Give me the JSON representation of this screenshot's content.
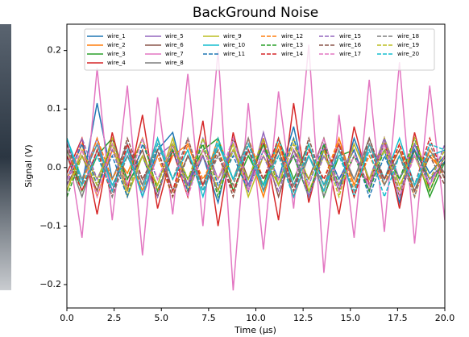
{
  "chart_data": {
    "type": "line",
    "title": "BackGround Noise",
    "xlabel": "Time (μs)",
    "ylabel": "Signal (V)",
    "xlim": [
      0,
      20
    ],
    "ylim": [
      -0.24,
      0.245
    ],
    "xticks": [
      {
        "value": 0,
        "label": "0.0"
      },
      2.5,
      {
        "value": 5,
        "label": "5.0"
      },
      7.5,
      {
        "value": 10,
        "label": "10.0"
      },
      12.5,
      {
        "value": 15,
        "label": "15.0"
      },
      17.5,
      {
        "value": 20,
        "label": "20.0"
      }
    ],
    "yticks": [
      {
        "value": -0.2,
        "label": "−0.2"
      },
      {
        "value": -0.1,
        "label": "−0.1"
      },
      {
        "value": 0,
        "label": "0.0"
      },
      0.1,
      0.2
    ],
    "legend": "upper center",
    "x": [
      0,
      0.8,
      1.6,
      2.4,
      3.2,
      4,
      4.8,
      5.6,
      6.4,
      7.2,
      8,
      8.8,
      9.6,
      10.4,
      11.2,
      12,
      12.8,
      13.6,
      14.4,
      15.2,
      16,
      16.8,
      17.6,
      18.4,
      19.2,
      20
    ],
    "series": [
      {
        "name": "wire_1",
        "color": "#1f77b4",
        "linestyle": "solid",
        "values": [
          0.02,
          -0.03,
          0.11,
          -0.02,
          0.04,
          -0.05,
          0.03,
          0.06,
          -0.04,
          0.02,
          -0.06,
          0.05,
          -0.03,
          0.04,
          -0.02,
          0.07,
          -0.05,
          0.03,
          -0.04,
          0.05,
          -0.02,
          0.03,
          -0.06,
          0.04,
          -0.01,
          0.02
        ]
      },
      {
        "name": "wire_2",
        "color": "#ff7f0e",
        "linestyle": "solid",
        "values": [
          -0.02,
          0.04,
          -0.05,
          0.03,
          -0.01,
          0.05,
          -0.04,
          0.02,
          0.04,
          -0.03,
          0.05,
          -0.02,
          0.03,
          -0.05,
          0.04,
          -0.03,
          0.02,
          -0.04,
          0.05,
          -0.03,
          0.04,
          -0.02,
          0.03,
          -0.04,
          0.02,
          -0.01
        ]
      },
      {
        "name": "wire_3",
        "color": "#2ca02c",
        "linestyle": "solid",
        "values": [
          0.03,
          -0.04,
          0.02,
          0.05,
          -0.03,
          0.02,
          -0.05,
          0.04,
          -0.02,
          0.03,
          0.05,
          -0.04,
          0.02,
          -0.03,
          0.05,
          -0.02,
          0.04,
          -0.05,
          0.02,
          0.03,
          -0.04,
          0.05,
          -0.02,
          0.03,
          -0.05,
          0.01
        ]
      },
      {
        "name": "wire_4",
        "color": "#d62728",
        "linestyle": "solid",
        "values": [
          -0.01,
          0.05,
          -0.08,
          0.06,
          -0.04,
          0.09,
          -0.07,
          0.03,
          -0.05,
          0.08,
          -0.1,
          0.06,
          -0.04,
          0.05,
          -0.09,
          0.11,
          -0.06,
          0.04,
          -0.08,
          0.07,
          -0.03,
          0.05,
          -0.07,
          0.06,
          -0.04,
          0.02
        ]
      },
      {
        "name": "wire_5",
        "color": "#9467bd",
        "linestyle": "solid",
        "values": [
          0.04,
          -0.02,
          0.05,
          -0.04,
          0.03,
          -0.05,
          0.02,
          0.04,
          -0.03,
          0.05,
          -0.02,
          0.03,
          -0.04,
          0.06,
          -0.03,
          0.02,
          -0.05,
          0.04,
          -0.02,
          0.03,
          -0.04,
          0.05,
          -0.02,
          0.04,
          -0.03,
          0.02
        ]
      },
      {
        "name": "wire_6",
        "color": "#8c564b",
        "linestyle": "solid",
        "values": [
          -0.03,
          0.02,
          -0.04,
          0.05,
          -0.02,
          0.03,
          -0.05,
          0.04,
          -0.03,
          0.02,
          -0.04,
          0.05,
          -0.02,
          0.04,
          -0.05,
          0.03,
          -0.02,
          0.05,
          -0.04,
          0.02,
          -0.03,
          0.04,
          -0.05,
          0.03,
          -0.02,
          0.01
        ]
      },
      {
        "name": "wire_7",
        "color": "#e377c2",
        "linestyle": "solid",
        "values": [
          0.05,
          -0.12,
          0.17,
          -0.09,
          0.14,
          -0.15,
          0.12,
          -0.08,
          0.16,
          -0.1,
          0.2,
          -0.21,
          0.11,
          -0.14,
          0.13,
          -0.07,
          0.21,
          -0.18,
          0.09,
          -0.12,
          0.15,
          -0.11,
          0.18,
          -0.13,
          0.14,
          -0.09
        ]
      },
      {
        "name": "wire_8",
        "color": "#7f7f7f",
        "linestyle": "solid",
        "values": [
          0.02,
          -0.05,
          0.03,
          -0.02,
          0.04,
          -0.03,
          0.05,
          -0.04,
          0.02,
          -0.03,
          0.04,
          -0.02,
          0.05,
          -0.04,
          0.03,
          -0.05,
          0.02,
          -0.03,
          0.04,
          -0.02,
          0.05,
          -0.03,
          0.02,
          -0.04,
          0.03,
          -0.01
        ]
      },
      {
        "name": "wire_9",
        "color": "#bcbd22",
        "linestyle": "solid",
        "values": [
          -0.04,
          0.03,
          -0.02,
          0.04,
          -0.05,
          0.02,
          -0.03,
          0.05,
          -0.04,
          0.03,
          -0.02,
          0.04,
          -0.05,
          0.02,
          -0.03,
          0.05,
          -0.04,
          0.02,
          -0.03,
          0.04,
          -0.02,
          0.05,
          -0.03,
          0.02,
          -0.04,
          0.02
        ]
      },
      {
        "name": "wire_10",
        "color": "#17becf",
        "linestyle": "solid",
        "values": [
          0.05,
          -0.02,
          0.04,
          -0.03,
          0.02,
          -0.04,
          0.05,
          -0.02,
          0.03,
          -0.05,
          0.04,
          -0.02,
          0.03,
          -0.04,
          0.05,
          -0.03,
          0.02,
          -0.04,
          0.03,
          -0.05,
          0.04,
          -0.02,
          0.05,
          -0.03,
          0.02,
          0.03
        ]
      },
      {
        "name": "wire_11",
        "color": "#1f77b4",
        "linestyle": "dashed",
        "values": [
          -0.02,
          0.04,
          -0.03,
          0.02,
          -0.05,
          0.04,
          -0.02,
          0.03,
          -0.04,
          0.05,
          -0.03,
          0.02,
          -0.04,
          0.03,
          -0.02,
          0.05,
          -0.03,
          0.04,
          -0.02,
          0.03,
          -0.05,
          0.02,
          -0.04,
          0.03,
          -0.02,
          0.01
        ]
      },
      {
        "name": "wire_12",
        "color": "#ff7f0e",
        "linestyle": "dashed",
        "values": [
          0.03,
          -0.03,
          0.05,
          -0.02,
          0.03,
          -0.04,
          0.02,
          -0.05,
          0.04,
          -0.02,
          0.03,
          -0.03,
          0.05,
          -0.02,
          0.04,
          -0.04,
          0.03,
          -0.02,
          0.05,
          -0.04,
          0.02,
          -0.03,
          0.04,
          -0.05,
          0.03,
          -0.02
        ]
      },
      {
        "name": "wire_13",
        "color": "#2ca02c",
        "linestyle": "dashed",
        "values": [
          -0.05,
          0.02,
          -0.03,
          0.04,
          -0.02,
          0.05,
          -0.04,
          0.03,
          -0.02,
          0.04,
          -0.05,
          0.03,
          -0.02,
          0.04,
          -0.03,
          0.02,
          -0.05,
          0.04,
          -0.03,
          0.02,
          -0.04,
          0.03,
          -0.02,
          0.05,
          -0.04,
          0.02
        ]
      },
      {
        "name": "wire_14",
        "color": "#d62728",
        "linestyle": "dashed",
        "values": [
          0.02,
          -0.04,
          0.03,
          -0.05,
          0.04,
          -0.02,
          0.03,
          -0.04,
          0.05,
          -0.03,
          0.02,
          -0.04,
          0.03,
          -0.02,
          0.05,
          -0.04,
          0.03,
          -0.02,
          0.04,
          -0.05,
          0.03,
          -0.02,
          0.04,
          -0.03,
          0.05,
          -0.02
        ]
      },
      {
        "name": "wire_15",
        "color": "#9467bd",
        "linestyle": "dashed",
        "values": [
          -0.03,
          0.05,
          -0.02,
          0.03,
          -0.04,
          0.02,
          -0.05,
          0.04,
          -0.03,
          0.02,
          -0.04,
          0.05,
          -0.03,
          0.02,
          -0.04,
          0.03,
          -0.05,
          0.02,
          -0.03,
          0.04,
          -0.02,
          0.05,
          -0.04,
          0.02,
          -0.03,
          0.04
        ]
      },
      {
        "name": "wire_16",
        "color": "#8c564b",
        "linestyle": "dashed",
        "values": [
          0.04,
          -0.03,
          0.02,
          -0.04,
          0.05,
          -0.02,
          0.03,
          -0.05,
          0.02,
          -0.04,
          0.03,
          -0.05,
          0.04,
          -0.02,
          0.03,
          -0.04,
          0.05,
          -0.03,
          0.02,
          -0.04,
          0.05,
          -0.02,
          0.03,
          -0.04,
          0.02,
          -0.03
        ]
      },
      {
        "name": "wire_17",
        "color": "#e377c2",
        "linestyle": "dashed",
        "values": [
          -0.02,
          0.03,
          -0.05,
          0.04,
          -0.03,
          0.05,
          -0.02,
          0.04,
          -0.05,
          0.03,
          -0.02,
          0.05,
          -0.04,
          0.03,
          -0.02,
          0.04,
          -0.03,
          0.05,
          -0.04,
          0.02,
          -0.03,
          0.04,
          -0.05,
          0.02,
          -0.03,
          0.02
        ]
      },
      {
        "name": "wire_18",
        "color": "#7f7f7f",
        "linestyle": "dashed",
        "values": [
          0.03,
          -0.02,
          0.04,
          -0.05,
          0.02,
          -0.03,
          0.04,
          -0.02,
          0.05,
          -0.04,
          0.02,
          -0.03,
          0.05,
          -0.04,
          0.02,
          -0.03,
          0.04,
          -0.05,
          0.03,
          -0.02,
          0.04,
          -0.03,
          0.02,
          -0.05,
          0.04,
          -0.02
        ]
      },
      {
        "name": "wire_19",
        "color": "#bcbd22",
        "linestyle": "dashed",
        "values": [
          -0.04,
          0.02,
          -0.03,
          0.05,
          -0.04,
          0.02,
          -0.03,
          0.04,
          -0.02,
          0.05,
          -0.04,
          0.03,
          -0.02,
          0.05,
          -0.03,
          0.04,
          -0.02,
          0.03,
          -0.05,
          0.04,
          -0.02,
          0.03,
          -0.04,
          0.05,
          -0.02,
          0.03
        ]
      },
      {
        "name": "wire_20",
        "color": "#17becf",
        "linestyle": "dashed",
        "values": [
          0.05,
          -0.03,
          0.02,
          -0.04,
          0.03,
          -0.05,
          0.04,
          -0.02,
          0.03,
          -0.04,
          0.05,
          -0.02,
          0.04,
          -0.03,
          0.02,
          -0.05,
          0.04,
          -0.03,
          0.02,
          -0.04,
          0.03,
          -0.05,
          0.02,
          -0.03,
          0.04,
          0.03
        ]
      }
    ]
  }
}
